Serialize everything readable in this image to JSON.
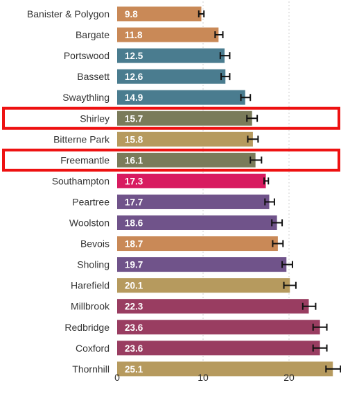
{
  "chart_data": {
    "type": "bar",
    "orientation": "horizontal",
    "categories": [
      "Banister & Polygon",
      "Bargate",
      "Portswood",
      "Bassett",
      "Swaythling",
      "Shirley",
      "Bitterne Park",
      "Freemantle",
      "Southampton",
      "Peartree",
      "Woolston",
      "Bevois",
      "Sholing",
      "Harefield",
      "Millbrook",
      "Redbridge",
      "Coxford",
      "Thornhill"
    ],
    "values": [
      9.8,
      11.8,
      12.5,
      12.6,
      14.9,
      15.7,
      15.8,
      16.1,
      17.3,
      17.7,
      18.6,
      18.7,
      19.7,
      20.1,
      22.3,
      23.6,
      23.6,
      25.1
    ],
    "value_labels": [
      "9.8",
      "11.8",
      "12.5",
      "12.6",
      "14.9",
      "15.7",
      "15.8",
      "16.1",
      "17.3",
      "17.7",
      "18.6",
      "18.7",
      "19.7",
      "20.1",
      "22.3",
      "23.6",
      "23.6",
      "25.1"
    ],
    "error_low": [
      9.5,
      11.4,
      12.0,
      12.1,
      14.4,
      15.1,
      15.2,
      15.5,
      17.1,
      17.2,
      18.0,
      18.1,
      19.2,
      19.4,
      21.6,
      22.8,
      22.8,
      24.3
    ],
    "error_high": [
      10.1,
      12.3,
      13.1,
      13.1,
      15.5,
      16.3,
      16.4,
      16.8,
      17.6,
      18.3,
      19.2,
      19.3,
      20.4,
      20.8,
      23.1,
      24.4,
      24.4,
      26.0
    ],
    "colors": [
      "#c98957",
      "#c98957",
      "#4a7c8f",
      "#4a7c8f",
      "#4a7c8f",
      "#7a7b5a",
      "#b69a5e",
      "#7a7b5a",
      "#d81b60",
      "#70538a",
      "#70538a",
      "#c98957",
      "#70538a",
      "#b69a5e",
      "#993d61",
      "#993d61",
      "#993d61",
      "#b69a5e"
    ],
    "highlighted": [
      "Shirley",
      "Freemantle"
    ],
    "highlight_color": "#ee1111",
    "xlim": [
      0,
      26.3
    ],
    "x_ticks": [
      0,
      10,
      20
    ],
    "x_tick_labels": [
      "0",
      "10",
      "20"
    ],
    "grid": "vertical-dotted",
    "title": "",
    "xlabel": "",
    "ylabel": ""
  }
}
